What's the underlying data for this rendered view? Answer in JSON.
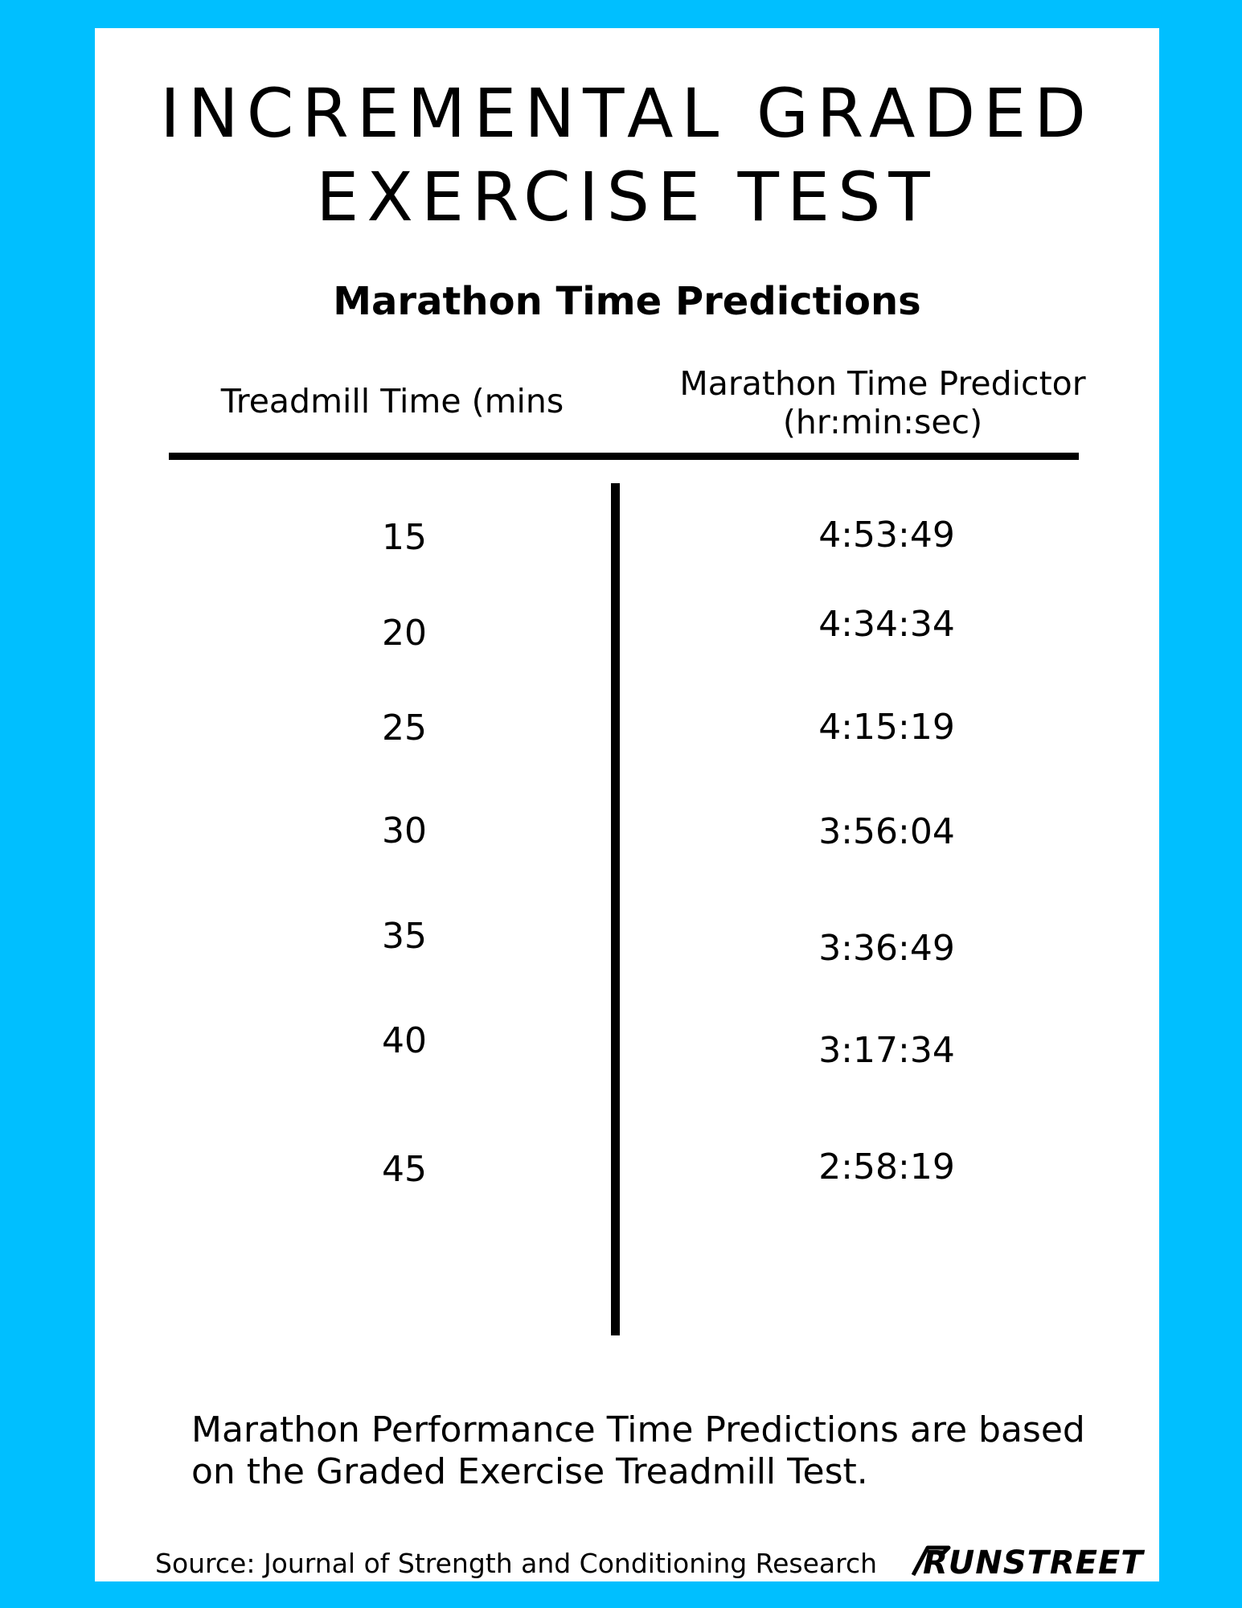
{
  "title": {
    "line1": "INCREMENTAL GRADED",
    "line2": "EXERCISE TEST"
  },
  "subtitle": "Marathon Time Predictions",
  "table": {
    "headers": {
      "treadmill": "Treadmill Time (mins",
      "predictor_line1": "Marathon Time Predictor",
      "predictor_line2": "(hr:min:sec)"
    },
    "rows": [
      {
        "minutes": "15",
        "time": "4:53:49"
      },
      {
        "minutes": "20",
        "time": "4:34:34"
      },
      {
        "minutes": "25",
        "time": "4:15:19"
      },
      {
        "minutes": "30",
        "time": "3:56:04"
      },
      {
        "minutes": "35",
        "time": "3:36:49"
      },
      {
        "minutes": "40",
        "time": "3:17:34"
      },
      {
        "minutes": "45",
        "time": "2:58:19"
      }
    ]
  },
  "footnote": {
    "line1": "Marathon Performance Time Predictions are based",
    "line2": "on the Graded Exercise Treadmill Test."
  },
  "source": "Source: Journal of Strength and Conditioning Research",
  "logo": {
    "text": "RUNSTREET"
  },
  "colors": {
    "background": "#00BFFF",
    "card": "#FFFFFF",
    "text": "#000000"
  }
}
